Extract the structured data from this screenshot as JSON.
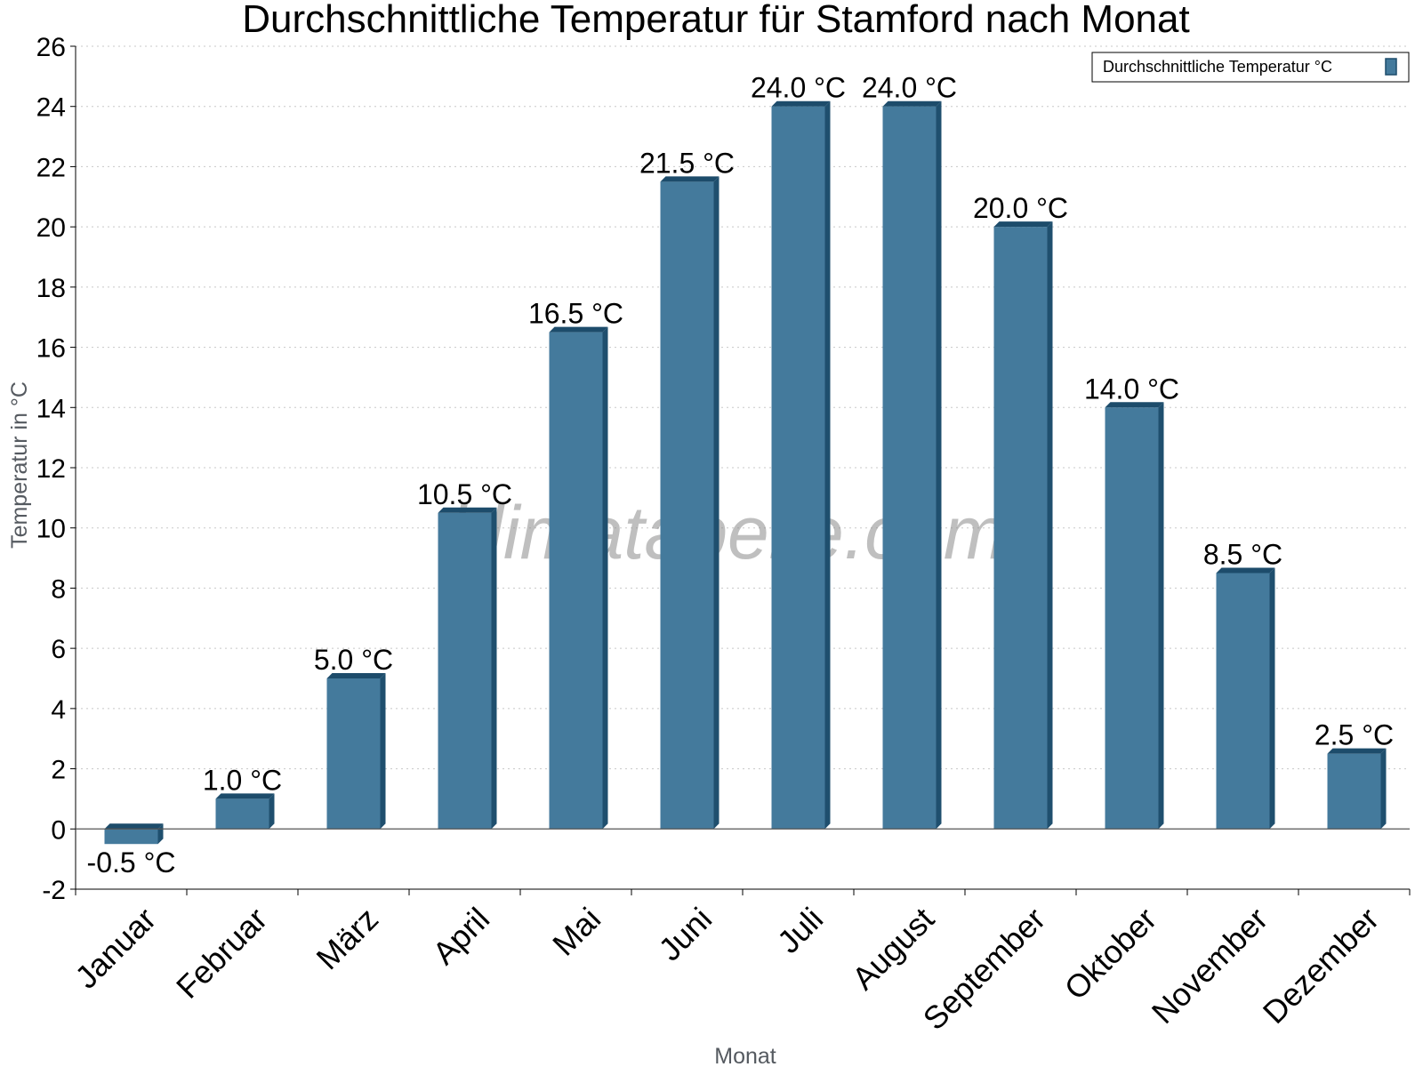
{
  "title": "Durchschnittliche Temperatur für Stamford nach Monat",
  "watermark": "klimatabelle.com",
  "colors": {
    "bar_front": "#447a9c",
    "bar_side": "#1f4f6e",
    "bar_top": "#1d4c6b",
    "grid": "#c8c8c8",
    "axis": "#000000"
  },
  "chart_data": {
    "type": "bar",
    "title": "Durchschnittliche Temperatur für Stamford nach Monat",
    "xlabel": "Monat",
    "ylabel": "Temperatur in °C",
    "ylim": [
      -2,
      26
    ],
    "yticks": [
      -2,
      0,
      2,
      4,
      6,
      8,
      10,
      12,
      14,
      16,
      18,
      20,
      22,
      24,
      26
    ],
    "grid": "horizontal dotted",
    "legend_position": "top-right",
    "categories": [
      "Januar",
      "Februar",
      "März",
      "April",
      "Mai",
      "Juni",
      "Juli",
      "August",
      "September",
      "Oktober",
      "November",
      "Dezember"
    ],
    "series": [
      {
        "name": "Durchschnittliche Temperatur °C",
        "values": [
          -0.5,
          1.0,
          5.0,
          10.5,
          16.5,
          21.5,
          24.0,
          24.0,
          20.0,
          14.0,
          8.5,
          2.5
        ],
        "labels": [
          "-0.5 °C",
          "1.0 °C",
          "5.0 °C",
          "10.5 °C",
          "16.5 °C",
          "21.5 °C",
          "24.0 °C",
          "24.0 °C",
          "20.0 °C",
          "14.0 °C",
          "8.5 °C",
          "2.5 °C"
        ]
      }
    ]
  }
}
